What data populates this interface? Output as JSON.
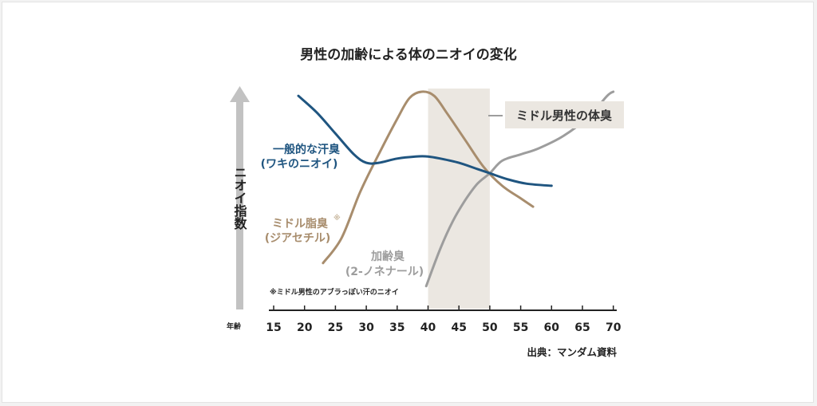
{
  "chart_data": {
    "type": "line",
    "title": "男性の加齢による体のニオイの変化",
    "ylabel": "ニオイ指数",
    "xlabel": "年齢",
    "xlim": [
      15,
      70
    ],
    "ylim": [
      0,
      100
    ],
    "x_ticks": [
      "15",
      "20",
      "25",
      "30",
      "35",
      "40",
      "45",
      "50",
      "55",
      "60",
      "65",
      "70"
    ],
    "highlight_range": [
      40,
      50
    ],
    "highlight_color": "#ebe7e1",
    "source": "出典：マンダム資料",
    "footnote": "※ミドル男性のアブラっぽい汗のニオイ",
    "series": [
      {
        "key": "sweat",
        "label_lines": [
          "一般的な汗臭",
          "(ワキのニオイ)"
        ],
        "color": "#1f5580",
        "points": [
          [
            19,
            98
          ],
          [
            22,
            90
          ],
          [
            25,
            80
          ],
          [
            28,
            70
          ],
          [
            30,
            66
          ],
          [
            32,
            66
          ],
          [
            35,
            68
          ],
          [
            38,
            69
          ],
          [
            40,
            69
          ],
          [
            42,
            68
          ],
          [
            45,
            66
          ],
          [
            48,
            63
          ],
          [
            50,
            61
          ],
          [
            53,
            58
          ],
          [
            56,
            56
          ],
          [
            60,
            55
          ]
        ]
      },
      {
        "key": "diacetyl",
        "label_lines": [
          "ミドル脂臭",
          "(ジアセチル)"
        ],
        "mark": "※",
        "color": "#a88d6d",
        "points": [
          [
            23,
            18
          ],
          [
            26,
            30
          ],
          [
            29,
            52
          ],
          [
            32,
            70
          ],
          [
            35,
            87
          ],
          [
            37,
            97
          ],
          [
            39,
            100
          ],
          [
            41,
            98
          ],
          [
            43,
            90
          ],
          [
            46,
            77
          ],
          [
            49,
            64
          ],
          [
            52,
            55
          ],
          [
            55,
            49
          ],
          [
            57,
            45
          ]
        ]
      },
      {
        "key": "nonenal",
        "label_lines": [
          "加齢臭",
          "(2-ノネナール)"
        ],
        "color": "#9d9d9d",
        "points": [
          [
            39.7,
            7
          ],
          [
            42,
            25
          ],
          [
            44,
            38
          ],
          [
            46,
            48
          ],
          [
            48,
            56
          ],
          [
            50,
            61
          ],
          [
            52,
            67
          ],
          [
            55,
            70
          ],
          [
            58,
            73
          ],
          [
            62,
            79
          ],
          [
            66,
            88
          ],
          [
            69,
            98
          ],
          [
            70,
            100
          ]
        ]
      }
    ],
    "callout": "ミドル男性の体臭"
  }
}
